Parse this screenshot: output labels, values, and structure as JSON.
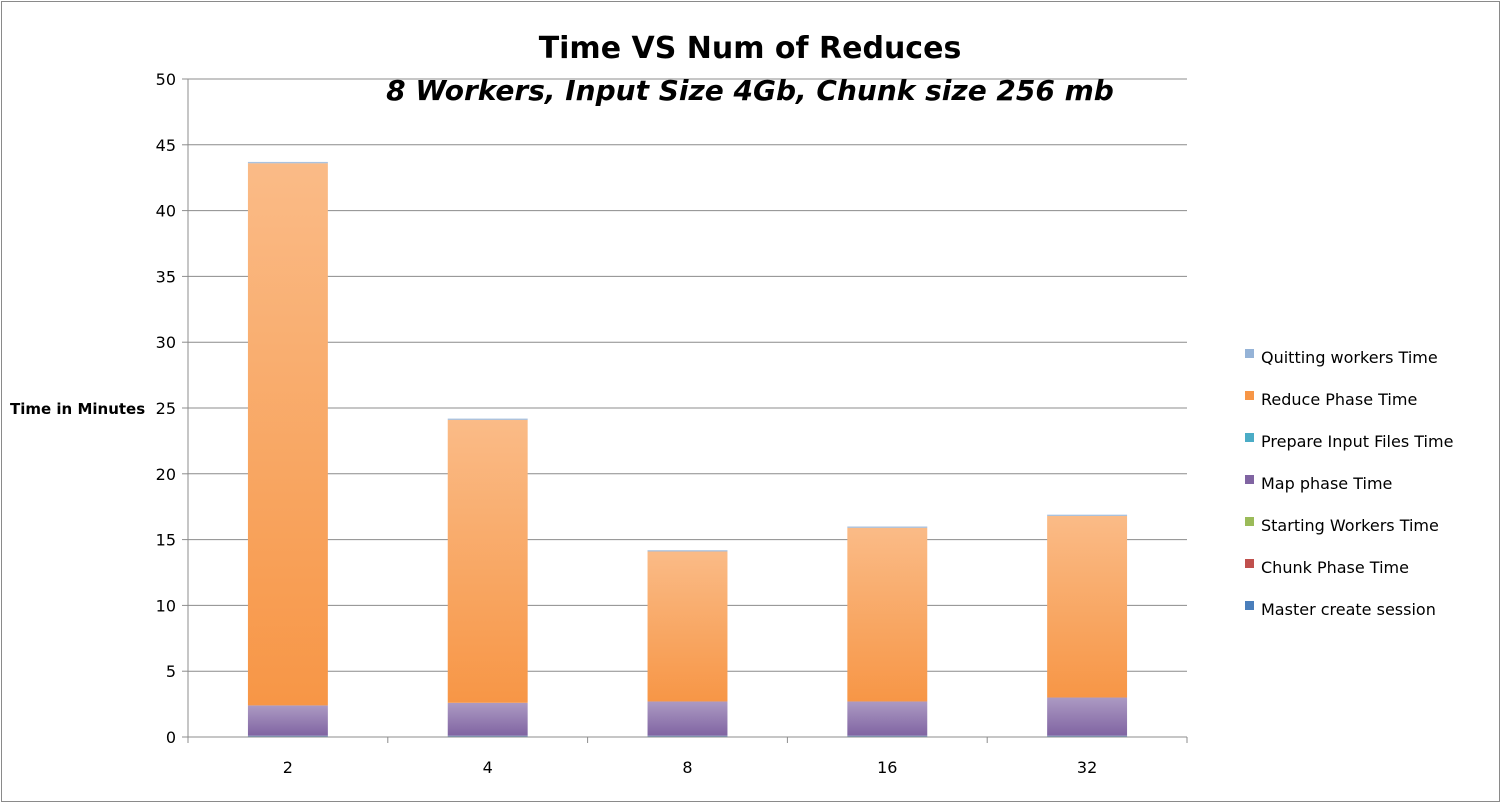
{
  "chart_data": {
    "type": "bar",
    "stacked": true,
    "title": "Time VS Num of Reduces",
    "subtitle": "8 Workers, Input Size 4Gb, Chunk size 256 mb",
    "xlabel": "",
    "ylabel": "Time in Minutes",
    "ylim": [
      0,
      50
    ],
    "yticks": [
      0,
      5,
      10,
      15,
      20,
      25,
      30,
      35,
      40,
      45,
      50
    ],
    "categories": [
      "2",
      "4",
      "8",
      "16",
      "32"
    ],
    "grid": true,
    "legend_position": "right",
    "series": [
      {
        "name": "Master create session",
        "color": "#4a7ebb",
        "values": [
          0.1,
          0.1,
          0.1,
          0.1,
          0.1
        ]
      },
      {
        "name": "Chunk Phase Time",
        "color": "#c0504d",
        "values": [
          0.0,
          0.0,
          0.0,
          0.0,
          0.0
        ]
      },
      {
        "name": "Starting Workers Time",
        "color": "#9bbb59",
        "values": [
          0.0,
          0.0,
          0.0,
          0.0,
          0.0
        ]
      },
      {
        "name": "Map phase Time",
        "color": "#8064a2",
        "values": [
          2.3,
          2.5,
          2.6,
          2.6,
          2.9
        ]
      },
      {
        "name": "Prepare Input Files Time",
        "color": "#4bacc6",
        "values": [
          0.0,
          0.0,
          0.0,
          0.0,
          0.0
        ]
      },
      {
        "name": "Reduce Phase Time",
        "color": "#f79646",
        "values": [
          41.2,
          21.5,
          11.4,
          13.2,
          13.8
        ]
      },
      {
        "name": "Quitting workers Time",
        "color": "#95b3d7",
        "values": [
          0.1,
          0.1,
          0.1,
          0.1,
          0.1
        ]
      }
    ]
  }
}
